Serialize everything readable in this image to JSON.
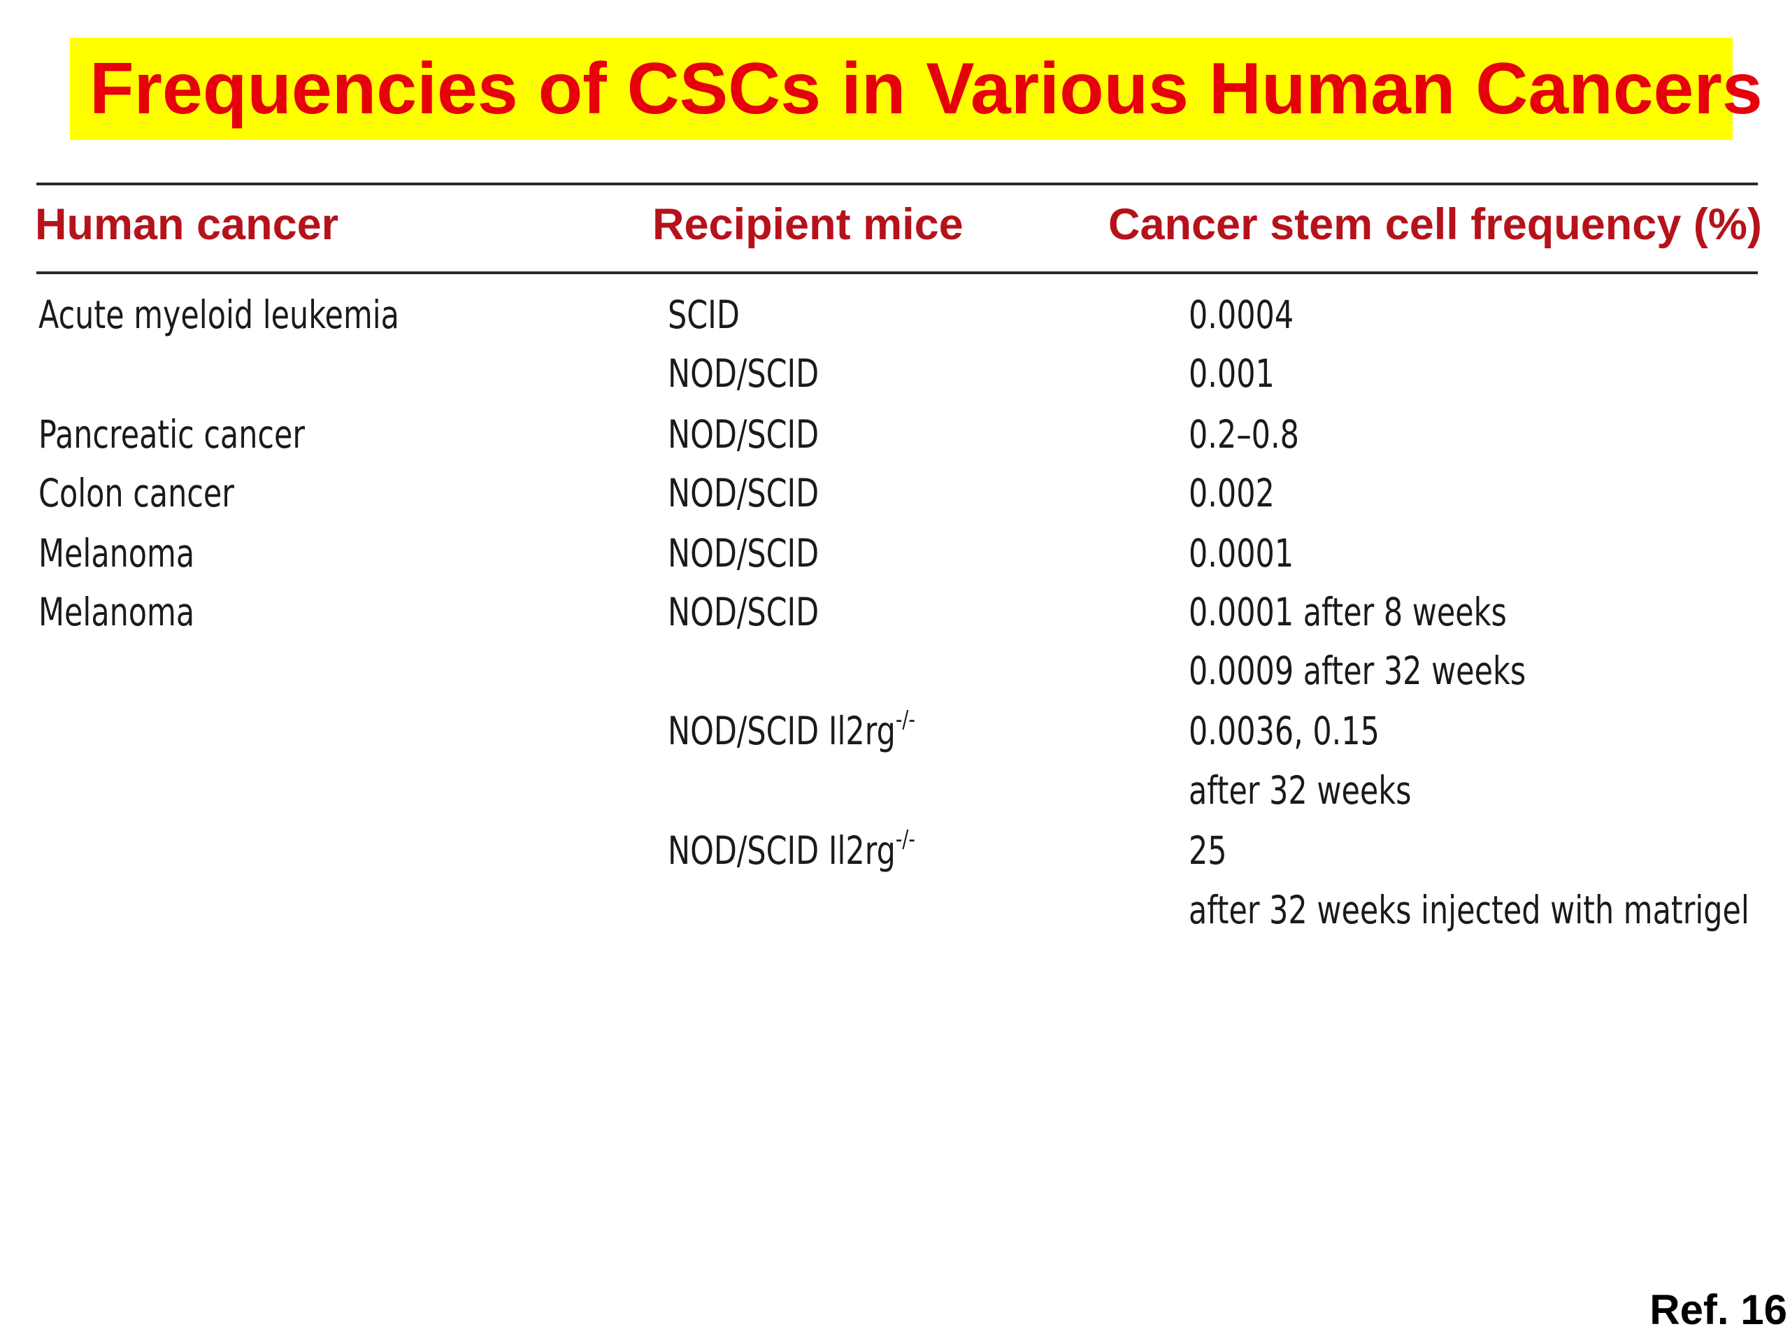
{
  "title": "Frequencies of CSCs in Various Human Cancers",
  "table": {
    "headers": [
      "Human cancer",
      "Recipient mice",
      "Cancer stem cell frequency (%)"
    ],
    "rows": [
      {
        "cancer": "Acute myeloid leukemia",
        "mice": "SCID",
        "mice_sup": "",
        "frequency": "0.0004"
      },
      {
        "cancer": "",
        "mice": "NOD/SCID",
        "mice_sup": "",
        "frequency": "0.001"
      },
      {
        "cancer": "Pancreatic cancer",
        "mice": "NOD/SCID",
        "mice_sup": "",
        "frequency": "0.2–0.8"
      },
      {
        "cancer": "Colon cancer",
        "mice": "NOD/SCID",
        "mice_sup": "",
        "frequency": "0.002"
      },
      {
        "cancer": "Melanoma",
        "mice": "NOD/SCID",
        "mice_sup": "",
        "frequency": "0.0001"
      },
      {
        "cancer": "Melanoma",
        "mice": "NOD/SCID",
        "mice_sup": "",
        "frequency": "0.0001 after 8 weeks"
      },
      {
        "cancer": "",
        "mice": "",
        "mice_sup": "",
        "frequency": "0.0009 after 32 weeks"
      },
      {
        "cancer": "",
        "mice": "NOD/SCID Il2rg",
        "mice_sup": "-/-",
        "frequency": "0.0036, 0.15"
      },
      {
        "cancer": "",
        "mice": "",
        "mice_sup": "",
        "frequency": "after 32 weeks"
      },
      {
        "cancer": "",
        "mice": "NOD/SCID Il2rg",
        "mice_sup": "-/-",
        "frequency": "25"
      },
      {
        "cancer": "",
        "mice": "",
        "mice_sup": "",
        "frequency": "after 32 weeks injected with matrigel"
      }
    ]
  },
  "reference": "Ref. 16",
  "colors": {
    "title_background": "#ffff00",
    "title_text": "#e5000b",
    "header_text": "#b5121b",
    "body_text": "#1a1a1a"
  }
}
